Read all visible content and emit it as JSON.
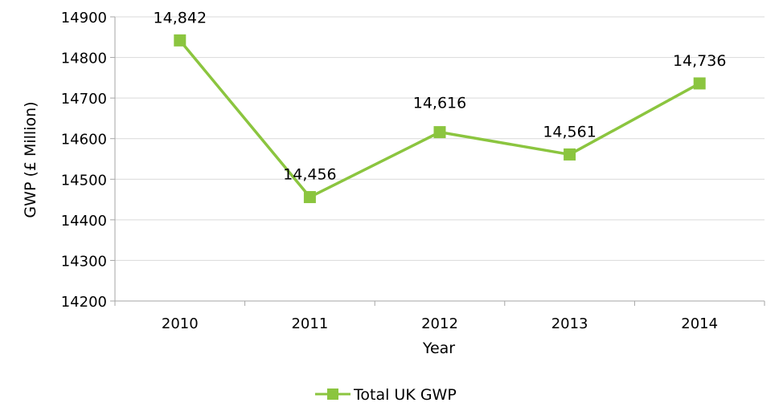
{
  "chart_data": {
    "type": "line",
    "title": "",
    "xlabel": "Year",
    "ylabel": "GWP (£ Million)",
    "categories": [
      "2010",
      "2011",
      "2012",
      "2013",
      "2014"
    ],
    "ylim": [
      14200,
      14900
    ],
    "yticks": [
      14200,
      14300,
      14400,
      14500,
      14600,
      14700,
      14800,
      14900
    ],
    "grid": true,
    "legend_position": "bottom",
    "series": [
      {
        "name": "Total UK GWP",
        "values": [
          14842,
          14456,
          14616,
          14561,
          14736
        ],
        "data_labels": [
          "14,842",
          "14,456",
          "14,616",
          "14,561",
          "14,736"
        ],
        "color": "#8bc53f",
        "marker": "square"
      }
    ]
  }
}
